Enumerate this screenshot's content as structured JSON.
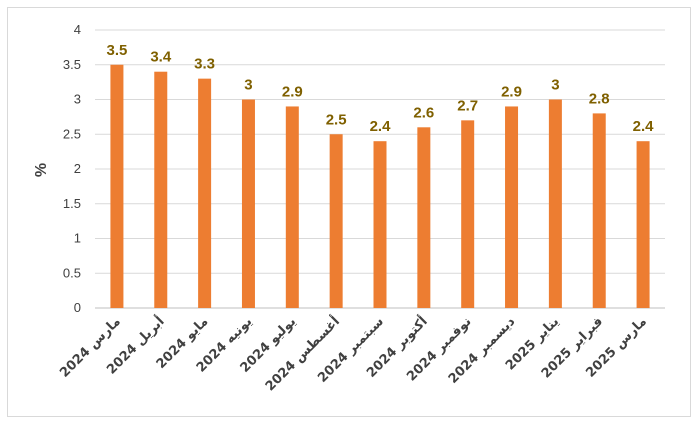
{
  "chart_data": {
    "type": "bar",
    "categories": [
      "مارس 2024",
      "أبريل 2024",
      "مايو 2024",
      "يونيه 2024",
      "يوليو 2024",
      "أغسطس 2024",
      "سبتمبر 2024",
      "أكتوبر 2024",
      "نوفمبر 2024",
      "ديسمبر 2024",
      "يناير 2025",
      "فبراير 2025",
      "مارس 2025"
    ],
    "values": [
      3.5,
      3.4,
      3.3,
      3,
      2.9,
      2.5,
      2.4,
      2.6,
      2.7,
      2.9,
      3,
      2.8,
      2.4
    ],
    "data_labels": [
      "3.5",
      "3.4",
      "3.3",
      "3",
      "2.9",
      "2.5",
      "2.4",
      "2.6",
      "2.7",
      "2.9",
      "3",
      "2.8",
      "2.4"
    ],
    "ylabel": "%",
    "ylim": [
      0,
      4
    ],
    "yticks": [
      "0",
      "0.5",
      "1",
      "1.5",
      "2",
      "2.5",
      "3",
      "3.5",
      "4"
    ],
    "grid": true,
    "legend": "none",
    "colors": {
      "bar": "#ED7D31",
      "label": "#7F6000",
      "grid": "#D9D9D9",
      "axis": "#BFBFBF"
    }
  }
}
